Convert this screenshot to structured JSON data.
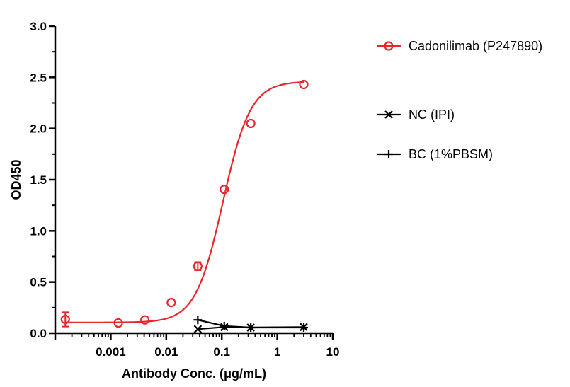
{
  "chart_data": {
    "type": "scatter",
    "xlabel": "Antibody Conc. (μg/mL)",
    "ylabel": "OD450",
    "xscale": "log",
    "xlim": [
      0.0001,
      10
    ],
    "ylim": [
      0,
      3.0
    ],
    "x_ticks": [
      0.001,
      0.01,
      0.1,
      1,
      10
    ],
    "x_tick_labels": [
      "0.001",
      "0.01",
      "0.1",
      "1",
      "10"
    ],
    "y_ticks": [
      0,
      0.5,
      1.0,
      1.5,
      2.0,
      2.5,
      3.0
    ],
    "y_tick_labels": [
      "0.0",
      "0.5",
      "1.0",
      "1.5",
      "2.0",
      "2.5",
      "3.0"
    ],
    "grid": false,
    "legend_position": "right",
    "series": [
      {
        "name": "Cadonilimab (P247890)",
        "color": "#e8262b",
        "marker": "circle-open",
        "x": [
          0.000152,
          0.00137,
          0.00412,
          0.0123,
          0.037,
          0.111,
          0.333,
          3.0
        ],
        "y": [
          0.135,
          0.1,
          0.13,
          0.3,
          0.655,
          1.405,
          2.05,
          2.43
        ],
        "error": [
          0.07,
          0.0,
          0.0,
          0.0,
          0.04,
          0.0,
          0.0,
          0.0
        ],
        "fit": {
          "type": "4PL",
          "bottom": 0.105,
          "top": 2.46,
          "ec50": 0.105,
          "hill": 1.75
        }
      },
      {
        "name": "NC (IPI)",
        "color": "#000000",
        "marker": "x",
        "x": [
          0.037,
          0.111,
          0.333,
          3.0
        ],
        "y": [
          0.04,
          0.06,
          0.055,
          0.06
        ]
      },
      {
        "name": "BC (1%PBSM)",
        "color": "#000000",
        "marker": "plus",
        "x": [
          0.037,
          0.111,
          0.333,
          3.0
        ],
        "y": [
          0.13,
          0.07,
          0.055,
          0.055
        ]
      }
    ]
  }
}
